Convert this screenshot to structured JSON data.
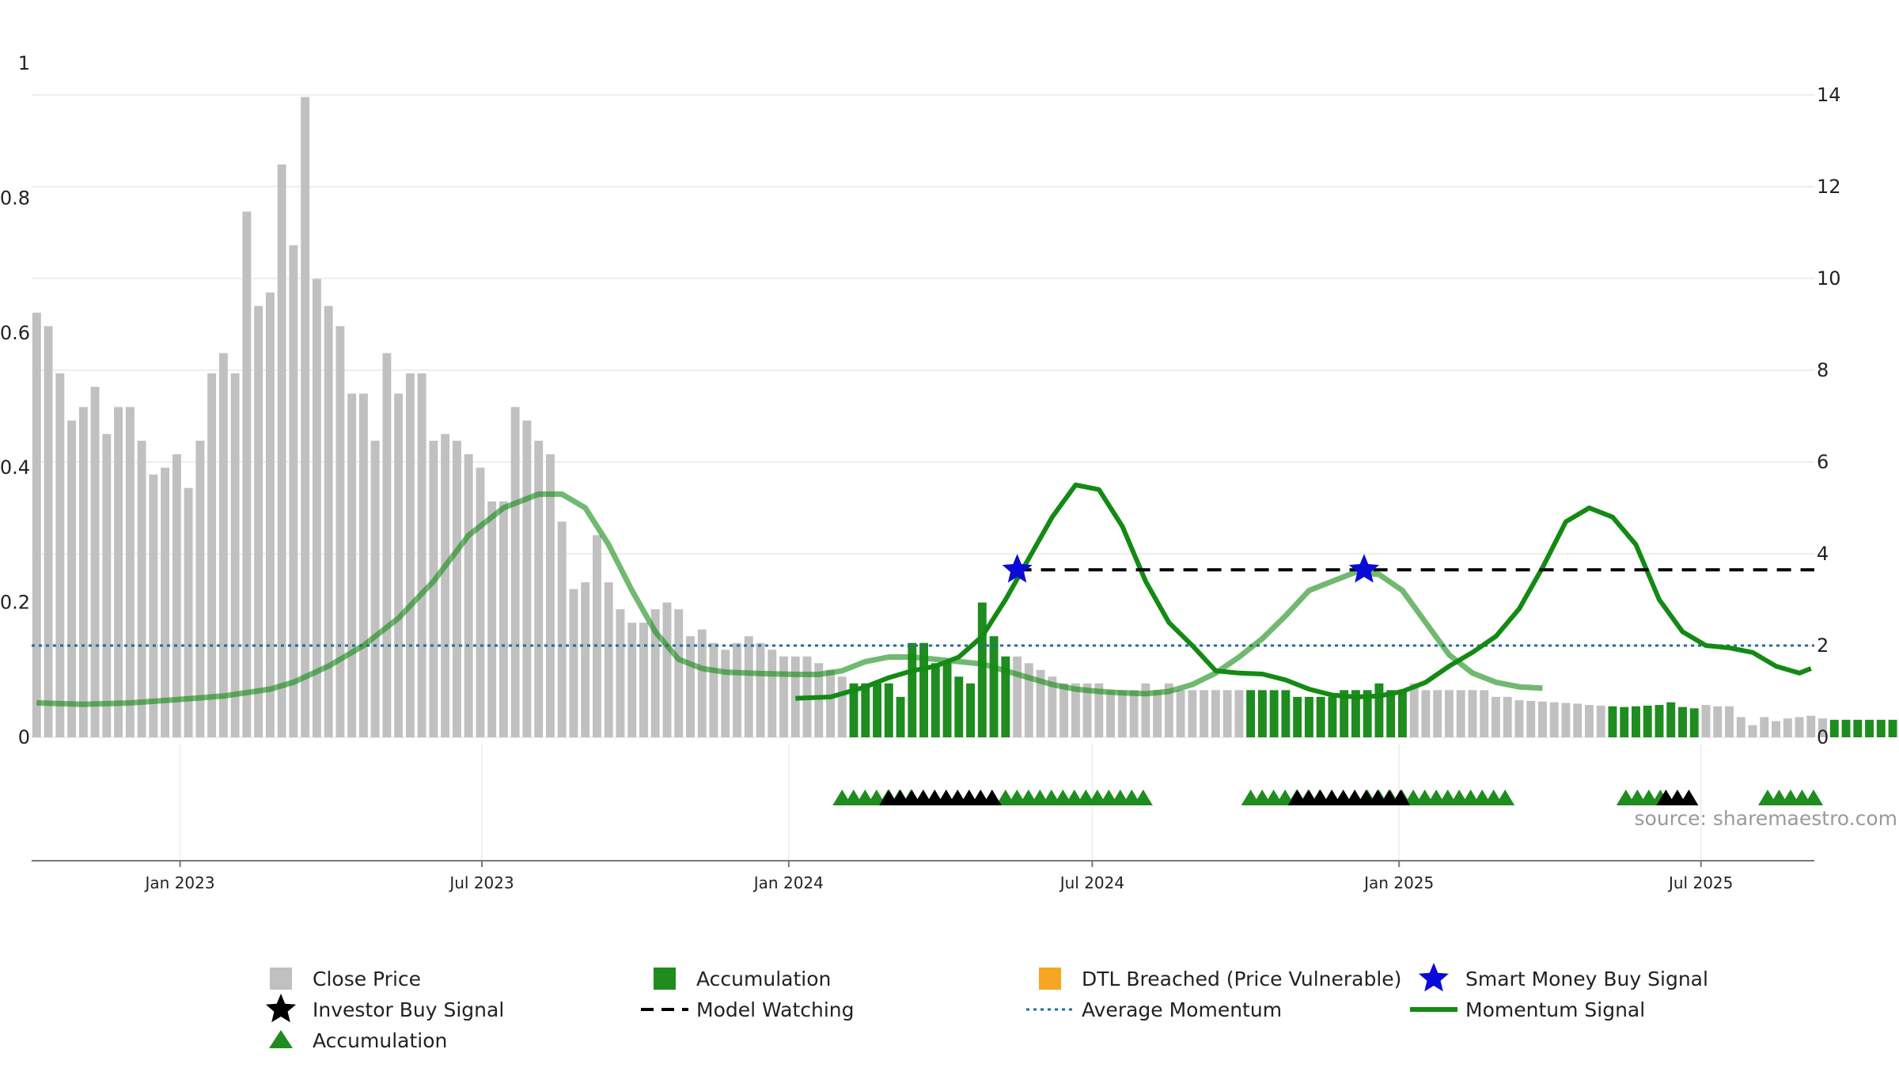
{
  "chart_data": {
    "type": "bar",
    "source_text": "source: sharemaestro.com",
    "left_axis": {
      "range": [
        0,
        1
      ],
      "ticks": [
        0,
        0.2,
        0.4,
        0.6,
        0.8,
        1
      ],
      "tick_labels": [
        "0",
        "0.2",
        "0.4",
        "0.6",
        "0.8",
        "1"
      ]
    },
    "right_axis": {
      "range": [
        0,
        14
      ],
      "ticks": [
        0,
        2,
        4,
        6,
        8,
        10,
        12,
        14
      ],
      "tick_labels": [
        "0",
        "2",
        "4",
        "6",
        "8",
        "10",
        "12",
        "14"
      ]
    },
    "x_axis": {
      "range": [
        "2022-10-04",
        "2025-09-07"
      ],
      "ticks": [
        "2023-01-01",
        "2023-07-01",
        "2024-01-01",
        "2024-07-01",
        "2025-01-01",
        "2025-07-01"
      ],
      "tick_labels": [
        "Jan 2023",
        "Jul 2023",
        "Jan 2024",
        "Jul 2024",
        "Jan 2025",
        "Jul 2025"
      ]
    },
    "grid": true,
    "legend_position": "bottom",
    "colors": {
      "close_price": "#c0c0c0",
      "accumulation": "#1e8c1e",
      "dtl_breached": "#f5a623",
      "smart_money": "#0a0ad8",
      "investor_buy": "#000000",
      "model_watching": "#000000",
      "average_momentum": "#1f6e9c",
      "momentum": "#138a13"
    },
    "legend": [
      {
        "label": "Close Price",
        "symbol": "square",
        "color": "#c0c0c0"
      },
      {
        "label": "Accumulation",
        "symbol": "square",
        "color": "#1e8c1e"
      },
      {
        "label": "DTL Breached (Price Vulnerable)",
        "symbol": "square",
        "color": "#f5a623"
      },
      {
        "label": "Smart Money Buy Signal",
        "symbol": "star",
        "color": "#0a0ad8"
      },
      {
        "label": "Investor Buy Signal",
        "symbol": "star",
        "color": "#000000"
      },
      {
        "label": "Model Watching",
        "symbol": "dashed",
        "color": "#000000"
      },
      {
        "label": "Average Momentum",
        "symbol": "dotted",
        "color": "#1f6e9c"
      },
      {
        "label": "Momentum Signal",
        "symbol": "line",
        "color": "#138a13"
      },
      {
        "label": "Accumulation",
        "symbol": "triangle",
        "color": "#1e8c1e"
      }
    ],
    "close_price": {
      "start_date": "2022-10-07",
      "interval_days": 7,
      "values": [
        0.63,
        0.61,
        0.54,
        0.47,
        0.49,
        0.52,
        0.45,
        0.49,
        0.49,
        0.44,
        0.39,
        0.4,
        0.42,
        0.37,
        0.44,
        0.54,
        0.57,
        0.54,
        0.78,
        0.64,
        0.66,
        0.85,
        0.73,
        0.95,
        0.68,
        0.64,
        0.61,
        0.51,
        0.51,
        0.44,
        0.57,
        0.51,
        0.54,
        0.54,
        0.44,
        0.45,
        0.44,
        0.42,
        0.4,
        0.35,
        0.35,
        0.49,
        0.47,
        0.44,
        0.42,
        0.32,
        0.22,
        0.23,
        0.3,
        0.23,
        0.19,
        0.17,
        0.17,
        0.19,
        0.2,
        0.19,
        0.15,
        0.16,
        0.14,
        0.13,
        0.14,
        0.15,
        0.14,
        0.13,
        0.12,
        0.12,
        0.12,
        0.11,
        0.1,
        0.09,
        0.08,
        0.08,
        0.08,
        0.08,
        0.06,
        0.14,
        0.14,
        0.11,
        0.11,
        0.09,
        0.08,
        0.2,
        0.15,
        0.12,
        0.12,
        0.11,
        0.1,
        0.09,
        0.08,
        0.08,
        0.08,
        0.08,
        0.07,
        0.07,
        0.07,
        0.08,
        0.07,
        0.08,
        0.07,
        0.07,
        0.07,
        0.07,
        0.07,
        0.07,
        0.07,
        0.07,
        0.07,
        0.07,
        0.06,
        0.06,
        0.06,
        0.06,
        0.07,
        0.07,
        0.07,
        0.08,
        0.07,
        0.07,
        0.08,
        0.07,
        0.07,
        0.07,
        0.07,
        0.07,
        0.07,
        0.06,
        0.06,
        0.055,
        0.054,
        0.053,
        0.052,
        0.051,
        0.05,
        0.048,
        0.047,
        0.046,
        0.045,
        0.046,
        0.047,
        0.048,
        0.052,
        0.045,
        0.043,
        0.048,
        0.046,
        0.046,
        0.03,
        0.018,
        0.03,
        0.024,
        0.028,
        0.03,
        0.032,
        0.028,
        0.026,
        0.026,
        0.026,
        0.026,
        0.026,
        0.026,
        0.024,
        0.024,
        0.024
      ],
      "accumulation_ranges": [
        [
          70,
          83
        ],
        [
          104,
          117
        ],
        [
          135,
          142
        ],
        [
          154,
          159
        ]
      ]
    },
    "momentum": {
      "points": [
        [
          "2022-10-07",
          0.75
        ],
        [
          "2022-11-04",
          0.72
        ],
        [
          "2022-12-02",
          0.75
        ],
        [
          "2022-12-30",
          0.82
        ],
        [
          "2023-01-27",
          0.9
        ],
        [
          "2023-02-24",
          1.05
        ],
        [
          "2023-03-10",
          1.2
        ],
        [
          "2023-03-31",
          1.55
        ],
        [
          "2023-04-21",
          2.0
        ],
        [
          "2023-05-12",
          2.6
        ],
        [
          "2023-06-02",
          3.4
        ],
        [
          "2023-06-23",
          4.4
        ],
        [
          "2023-07-14",
          5.0
        ],
        [
          "2023-08-04",
          5.3
        ],
        [
          "2023-08-18",
          5.3
        ],
        [
          "2023-09-01",
          5.0
        ],
        [
          "2023-09-15",
          4.2
        ],
        [
          "2023-09-29",
          3.2
        ],
        [
          "2023-10-13",
          2.3
        ],
        [
          "2023-10-27",
          1.7
        ],
        [
          "2023-11-10",
          1.5
        ],
        [
          "2023-11-24",
          1.42
        ],
        [
          "2023-12-15",
          1.39
        ],
        [
          "2024-01-05",
          1.37
        ],
        [
          "2024-01-19",
          1.37
        ],
        [
          "2024-02-02",
          1.45
        ],
        [
          "2024-02-16",
          1.65
        ],
        [
          "2024-03-01",
          1.75
        ],
        [
          "2024-03-15",
          1.75
        ],
        [
          "2024-03-29",
          1.7
        ],
        [
          "2024-04-12",
          1.65
        ],
        [
          "2024-04-26",
          1.6
        ],
        [
          "2024-05-10",
          1.45
        ],
        [
          "2024-05-24",
          1.3
        ],
        [
          "2024-06-07",
          1.15
        ],
        [
          "2024-06-21",
          1.05
        ],
        [
          "2024-07-05",
          1.0
        ],
        [
          "2024-07-19",
          0.97
        ],
        [
          "2024-08-02",
          0.95
        ],
        [
          "2024-08-16",
          1.0
        ],
        [
          "2024-08-30",
          1.15
        ],
        [
          "2024-09-13",
          1.4
        ],
        [
          "2024-09-27",
          1.75
        ],
        [
          "2024-10-11",
          2.15
        ],
        [
          "2024-10-25",
          2.65
        ],
        [
          "2024-11-08",
          3.2
        ],
        [
          "2024-11-22",
          3.4
        ],
        [
          "2024-12-06",
          3.6
        ],
        [
          "2024-12-20",
          3.55
        ],
        [
          "2025-01-03",
          3.2
        ],
        [
          "2025-01-17",
          2.5
        ],
        [
          "2025-01-31",
          1.8
        ],
        [
          "2025-02-14",
          1.4
        ],
        [
          "2025-02-28",
          1.2
        ],
        [
          "2025-03-14",
          1.1
        ],
        [
          "2025-03-28",
          1.07
        ]
      ],
      "series_2": [
        [
          "2024-01-05",
          0.85
        ],
        [
          "2024-01-26",
          0.88
        ],
        [
          "2024-02-16",
          1.1
        ],
        [
          "2024-03-01",
          1.3
        ],
        [
          "2024-03-15",
          1.45
        ],
        [
          "2024-03-29",
          1.55
        ],
        [
          "2024-04-12",
          1.75
        ],
        [
          "2024-04-26",
          2.2
        ],
        [
          "2024-05-10",
          3.0
        ],
        [
          "2024-05-24",
          3.9
        ],
        [
          "2024-06-07",
          4.8
        ],
        [
          "2024-06-21",
          5.5
        ],
        [
          "2024-07-05",
          5.4
        ],
        [
          "2024-07-19",
          4.6
        ],
        [
          "2024-08-02",
          3.4
        ],
        [
          "2024-08-16",
          2.5
        ],
        [
          "2024-08-30",
          2.0
        ],
        [
          "2024-09-13",
          1.45
        ],
        [
          "2024-09-27",
          1.4
        ],
        [
          "2024-10-11",
          1.38
        ],
        [
          "2024-10-25",
          1.25
        ],
        [
          "2024-11-08",
          1.05
        ],
        [
          "2024-11-22",
          0.92
        ],
        [
          "2024-12-06",
          0.88
        ],
        [
          "2024-12-20",
          0.9
        ],
        [
          "2025-01-03",
          1.0
        ],
        [
          "2025-01-17",
          1.2
        ],
        [
          "2025-01-31",
          1.55
        ],
        [
          "2025-02-14",
          1.85
        ],
        [
          "2025-02-28",
          2.2
        ],
        [
          "2025-03-14",
          2.8
        ],
        [
          "2025-03-28",
          3.7
        ],
        [
          "2025-04-11",
          4.7
        ],
        [
          "2025-04-25",
          5.0
        ],
        [
          "2025-05-09",
          4.8
        ],
        [
          "2025-05-23",
          4.2
        ],
        [
          "2025-06-06",
          3.0
        ],
        [
          "2025-06-20",
          2.3
        ],
        [
          "2025-07-04",
          2.0
        ],
        [
          "2025-07-18",
          1.95
        ],
        [
          "2025-08-01",
          1.85
        ],
        [
          "2025-08-15",
          1.55
        ],
        [
          "2025-08-29",
          1.4
        ],
        [
          "2025-09-05",
          1.5
        ]
      ]
    },
    "average_momentum": 2.0,
    "model_watching": {
      "start": "2024-05-17",
      "end": "2025-09-07",
      "value": 3.65
    },
    "smart_money_signals": [
      [
        "2024-05-17",
        3.65
      ],
      [
        "2024-12-11",
        3.65
      ]
    ],
    "accumulation_markers": [
      [
        "2024-02-02",
        7
      ],
      [
        "2024-05-10",
        13
      ],
      [
        "2024-10-04",
        7
      ],
      [
        "2024-12-13",
        13
      ],
      [
        "2025-05-17",
        4
      ],
      [
        "2025-08-10",
        5
      ]
    ],
    "investor_markers": [
      [
        "2024-03-01",
        10
      ],
      [
        "2024-11-01",
        10
      ],
      [
        "2025-06-10",
        3
      ]
    ]
  }
}
